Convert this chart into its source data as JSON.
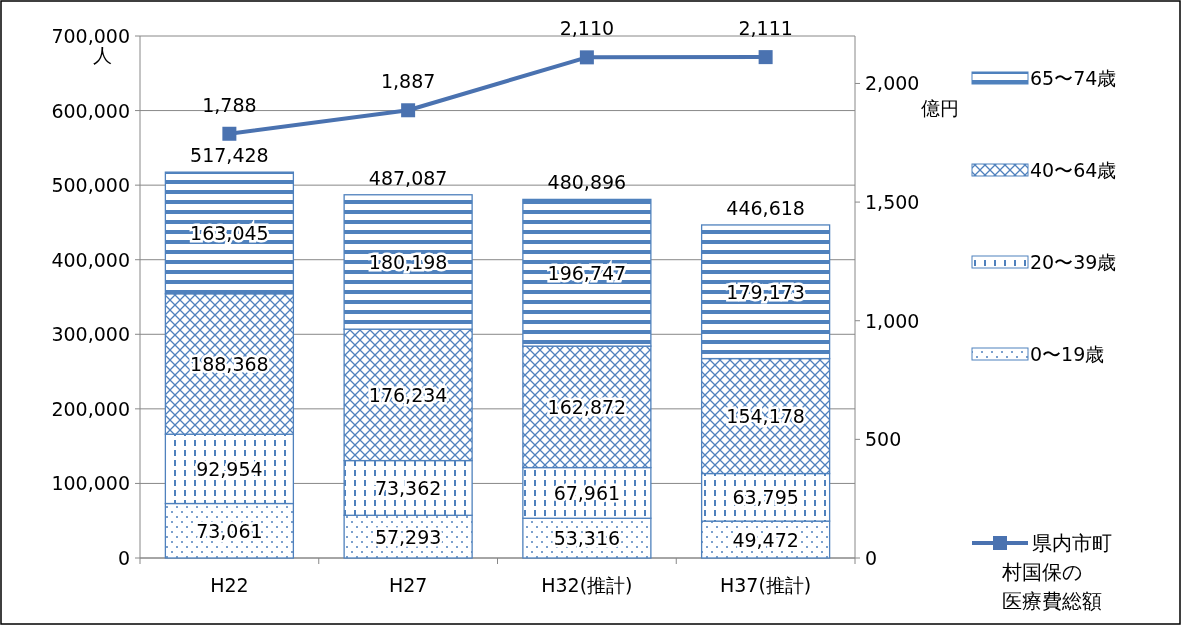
{
  "chart_data": {
    "type": "bar",
    "stacked": true,
    "categories": [
      "H22",
      "H27",
      "H32(推計)",
      "H37(推計)"
    ],
    "ylabel": "人",
    "y2label": "億円",
    "ylim": [
      0,
      700000
    ],
    "yticks": [
      0,
      {
        "value": 100000,
        "label": "100,000"
      },
      {
        "value": 200000,
        "label": "200,000"
      },
      {
        "value": 300000,
        "label": "300,000"
      },
      {
        "value": 400000,
        "label": "400,000"
      },
      {
        "value": 500000,
        "label": "500,000"
      },
      {
        "value": 600000,
        "label": "600,000"
      },
      {
        "value": 700000,
        "label": "700,000"
      }
    ],
    "y2lim": [
      0,
      2200
    ],
    "y2ticks": [
      0,
      500,
      {
        "value": 1000,
        "label": "1,000"
      },
      {
        "value": 1500,
        "label": "1,500"
      },
      {
        "value": 2000,
        "label": "2,000"
      }
    ],
    "series": [
      {
        "name": "0〜19歳",
        "color": "#4f81bd",
        "values": [
          73061,
          57293,
          53316,
          49472
        ],
        "value_labels": [
          "73,061",
          "57,293",
          "53,316",
          "49,472"
        ]
      },
      {
        "name": "20〜39歳",
        "color": "#4f81bd",
        "values": [
          92954,
          73362,
          67961,
          63795
        ],
        "value_labels": [
          "92,954",
          "73,362",
          "67,961",
          "63,795"
        ]
      },
      {
        "name": "40〜64歳",
        "color": "#4f81bd",
        "values": [
          188368,
          176234,
          162872,
          154178
        ],
        "value_labels": [
          "188,368",
          "176,234",
          "162,872",
          "154,178"
        ]
      },
      {
        "name": "65〜74歳",
        "color": "#4f81bd",
        "values": [
          163045,
          180198,
          196747,
          179173
        ],
        "value_labels": [
          "163,045",
          "180,198",
          "196,747",
          "179,173"
        ]
      },
      {
        "name": "県内市町村国保の医療費総額",
        "type": "line",
        "axis": "y2",
        "color": "#4a72b0",
        "marker": "square",
        "values": [
          1788,
          1887,
          2110,
          2111
        ],
        "value_labels": [
          "1,788",
          "1,887",
          "2,110",
          "2,111"
        ]
      }
    ],
    "totals": [
      "517,428",
      "487,087",
      "480,896",
      "446,618"
    ],
    "grid": "y",
    "legend": "right"
  }
}
